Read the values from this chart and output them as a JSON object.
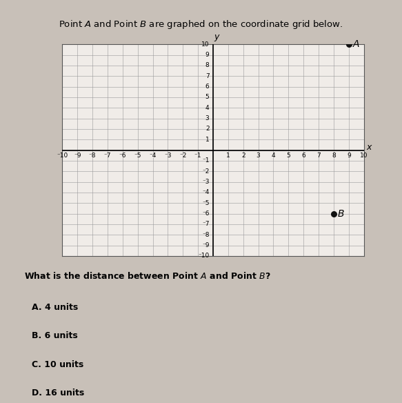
{
  "title": "Point $\\it{A}$ and Point $\\it{B}$ are graphed on the coordinate grid below.",
  "point_A": [
    9,
    10
  ],
  "point_B": [
    8,
    -6
  ],
  "axis_min": -10,
  "axis_max": 10,
  "grid_color": "#999999",
  "background_color": "#c8c0b8",
  "plot_bg_color": "#f0ece8",
  "plot_border_color": "#555555",
  "question_text": "What is the distance between Point $\\it{A}$ and Point $\\it{B}$?",
  "choices": [
    "A. 4 units",
    "B. 6 units",
    "C. 10 units",
    "D. 16 units"
  ],
  "point_color": "#111111",
  "point_size": 30,
  "label_fontsize": 9,
  "tick_fontsize": 6.5,
  "question_fontsize": 9,
  "choice_fontsize": 9
}
